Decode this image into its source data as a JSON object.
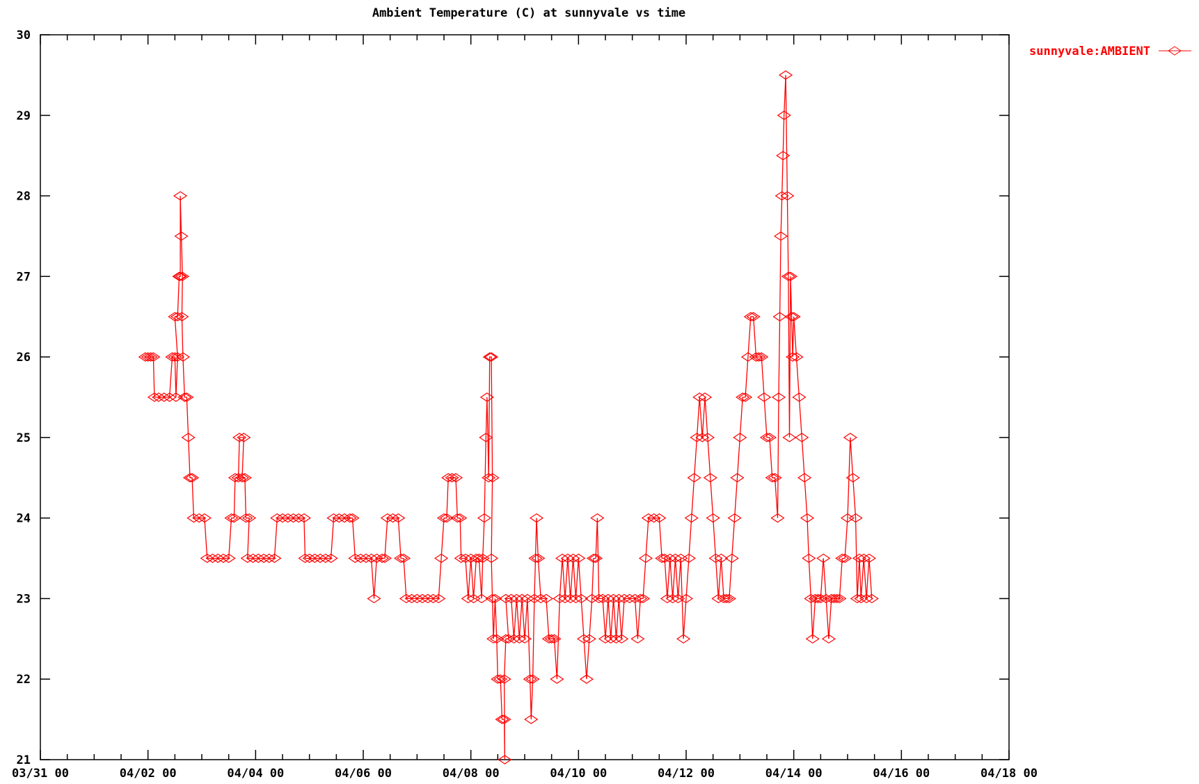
{
  "chart_data": {
    "type": "line",
    "title": "Ambient Temperature (C) at sunnyvale vs time",
    "xlabel": "",
    "ylabel": "",
    "xlim": [
      0,
      18
    ],
    "ylim": [
      21,
      30
    ],
    "x_unit": "days from 03/31 00",
    "x_tick_labels": [
      "03/31 00",
      "04/02 00",
      "04/04 00",
      "04/06 00",
      "04/08 00",
      "04/10 00",
      "04/12 00",
      "04/14 00",
      "04/16 00",
      "04/18 00"
    ],
    "y_tick_labels": [
      "21",
      "22",
      "23",
      "24",
      "25",
      "26",
      "27",
      "28",
      "29",
      "30"
    ],
    "grid": false,
    "legend_position": "top-right",
    "colors": {
      "series": "#ff0000",
      "axes": "#000000"
    },
    "series": [
      {
        "name": "sunnyvale:AMBIENT",
        "marker": "diamond",
        "points": [
          [
            1.95,
            26.0
          ],
          [
            2.0,
            26.0
          ],
          [
            2.05,
            26.0
          ],
          [
            2.1,
            26.0
          ],
          [
            2.12,
            25.5
          ],
          [
            2.2,
            25.5
          ],
          [
            2.3,
            25.5
          ],
          [
            2.4,
            25.5
          ],
          [
            2.45,
            26.0
          ],
          [
            2.5,
            26.0
          ],
          [
            2.52,
            25.5
          ],
          [
            2.55,
            26.0
          ],
          [
            2.5,
            26.5
          ],
          [
            2.55,
            26.5
          ],
          [
            2.58,
            27.0
          ],
          [
            2.6,
            27.0
          ],
          [
            2.6,
            28.0
          ],
          [
            2.62,
            27.5
          ],
          [
            2.64,
            27.0
          ],
          [
            2.63,
            26.5
          ],
          [
            2.65,
            26.0
          ],
          [
            2.68,
            25.5
          ],
          [
            2.72,
            25.5
          ],
          [
            2.75,
            25.0
          ],
          [
            2.78,
            24.5
          ],
          [
            2.82,
            24.5
          ],
          [
            2.85,
            24.0
          ],
          [
            2.95,
            24.0
          ],
          [
            3.05,
            24.0
          ],
          [
            3.1,
            23.5
          ],
          [
            3.2,
            23.5
          ],
          [
            3.3,
            23.5
          ],
          [
            3.4,
            23.5
          ],
          [
            3.5,
            23.5
          ],
          [
            3.55,
            24.0
          ],
          [
            3.6,
            24.0
          ],
          [
            3.62,
            24.5
          ],
          [
            3.68,
            24.5
          ],
          [
            3.7,
            25.0
          ],
          [
            3.78,
            25.0
          ],
          [
            3.75,
            24.5
          ],
          [
            3.8,
            24.5
          ],
          [
            3.82,
            24.0
          ],
          [
            3.88,
            24.0
          ],
          [
            3.85,
            23.5
          ],
          [
            3.95,
            23.5
          ],
          [
            4.05,
            23.5
          ],
          [
            4.15,
            23.5
          ],
          [
            4.25,
            23.5
          ],
          [
            4.35,
            23.5
          ],
          [
            4.4,
            24.0
          ],
          [
            4.5,
            24.0
          ],
          [
            4.6,
            24.0
          ],
          [
            4.7,
            24.0
          ],
          [
            4.8,
            24.0
          ],
          [
            4.9,
            24.0
          ],
          [
            4.92,
            23.5
          ],
          [
            5.0,
            23.5
          ],
          [
            5.1,
            23.5
          ],
          [
            5.2,
            23.5
          ],
          [
            5.3,
            23.5
          ],
          [
            5.4,
            23.5
          ],
          [
            5.45,
            24.0
          ],
          [
            5.55,
            24.0
          ],
          [
            5.65,
            24.0
          ],
          [
            5.75,
            24.0
          ],
          [
            5.8,
            24.0
          ],
          [
            5.85,
            23.5
          ],
          [
            5.95,
            23.5
          ],
          [
            6.05,
            23.5
          ],
          [
            6.15,
            23.5
          ],
          [
            6.2,
            23.0
          ],
          [
            6.25,
            23.5
          ],
          [
            6.35,
            23.5
          ],
          [
            6.4,
            23.5
          ],
          [
            6.45,
            24.0
          ],
          [
            6.55,
            24.0
          ],
          [
            6.65,
            24.0
          ],
          [
            6.7,
            23.5
          ],
          [
            6.75,
            23.5
          ],
          [
            6.8,
            23.0
          ],
          [
            6.9,
            23.0
          ],
          [
            7.0,
            23.0
          ],
          [
            7.1,
            23.0
          ],
          [
            7.2,
            23.0
          ],
          [
            7.3,
            23.0
          ],
          [
            7.4,
            23.0
          ],
          [
            7.45,
            23.5
          ],
          [
            7.5,
            24.0
          ],
          [
            7.55,
            24.0
          ],
          [
            7.58,
            24.5
          ],
          [
            7.65,
            24.5
          ],
          [
            7.72,
            24.5
          ],
          [
            7.75,
            24.0
          ],
          [
            7.8,
            24.0
          ],
          [
            7.82,
            23.5
          ],
          [
            7.9,
            23.5
          ],
          [
            7.95,
            23.0
          ],
          [
            8.0,
            23.5
          ],
          [
            8.05,
            23.0
          ],
          [
            8.1,
            23.5
          ],
          [
            8.15,
            23.5
          ],
          [
            8.2,
            23.0
          ],
          [
            8.22,
            23.5
          ],
          [
            8.25,
            24.0
          ],
          [
            8.28,
            25.0
          ],
          [
            8.3,
            25.5
          ],
          [
            8.33,
            24.5
          ],
          [
            8.35,
            26.0
          ],
          [
            8.38,
            26.0
          ],
          [
            8.4,
            24.5
          ],
          [
            8.38,
            23.5
          ],
          [
            8.4,
            23.0
          ],
          [
            8.42,
            22.5
          ],
          [
            8.45,
            23.0
          ],
          [
            8.48,
            22.5
          ],
          [
            8.5,
            22.0
          ],
          [
            8.55,
            22.0
          ],
          [
            8.58,
            21.5
          ],
          [
            8.62,
            21.5
          ],
          [
            8.63,
            21.0
          ],
          [
            8.62,
            22.0
          ],
          [
            8.65,
            22.5
          ],
          [
            8.7,
            22.5
          ],
          [
            8.65,
            23.0
          ],
          [
            8.75,
            23.0
          ],
          [
            8.8,
            22.5
          ],
          [
            8.85,
            23.0
          ],
          [
            8.9,
            22.5
          ],
          [
            8.95,
            23.0
          ],
          [
            9.0,
            22.5
          ],
          [
            9.05,
            23.0
          ],
          [
            9.1,
            22.0
          ],
          [
            9.12,
            21.5
          ],
          [
            9.15,
            22.0
          ],
          [
            9.18,
            23.0
          ],
          [
            9.2,
            23.5
          ],
          [
            9.22,
            24.0
          ],
          [
            9.25,
            23.5
          ],
          [
            9.3,
            23.0
          ],
          [
            9.4,
            23.0
          ],
          [
            9.45,
            22.5
          ],
          [
            9.5,
            22.5
          ],
          [
            9.55,
            22.5
          ],
          [
            9.6,
            22.0
          ],
          [
            9.65,
            23.0
          ],
          [
            9.7,
            23.5
          ],
          [
            9.75,
            23.0
          ],
          [
            9.8,
            23.5
          ],
          [
            9.85,
            23.0
          ],
          [
            9.9,
            23.5
          ],
          [
            9.95,
            23.0
          ],
          [
            10.0,
            23.5
          ],
          [
            10.05,
            23.0
          ],
          [
            10.1,
            22.5
          ],
          [
            10.15,
            22.0
          ],
          [
            10.2,
            22.5
          ],
          [
            10.25,
            23.0
          ],
          [
            10.28,
            23.5
          ],
          [
            10.32,
            23.5
          ],
          [
            10.35,
            24.0
          ],
          [
            10.38,
            23.0
          ],
          [
            10.45,
            23.0
          ],
          [
            10.5,
            22.5
          ],
          [
            10.55,
            23.0
          ],
          [
            10.6,
            22.5
          ],
          [
            10.65,
            23.0
          ],
          [
            10.7,
            22.5
          ],
          [
            10.75,
            23.0
          ],
          [
            10.8,
            22.5
          ],
          [
            10.85,
            23.0
          ],
          [
            10.95,
            23.0
          ],
          [
            11.05,
            23.0
          ],
          [
            11.1,
            22.5
          ],
          [
            11.15,
            23.0
          ],
          [
            11.2,
            23.0
          ],
          [
            11.25,
            23.5
          ],
          [
            11.3,
            24.0
          ],
          [
            11.4,
            24.0
          ],
          [
            11.5,
            24.0
          ],
          [
            11.55,
            23.5
          ],
          [
            11.6,
            23.5
          ],
          [
            11.65,
            23.0
          ],
          [
            11.7,
            23.5
          ],
          [
            11.75,
            23.0
          ],
          [
            11.8,
            23.5
          ],
          [
            11.85,
            23.0
          ],
          [
            11.9,
            23.5
          ],
          [
            11.95,
            22.5
          ],
          [
            12.0,
            23.0
          ],
          [
            12.05,
            23.5
          ],
          [
            12.1,
            24.0
          ],
          [
            12.15,
            24.5
          ],
          [
            12.2,
            25.0
          ],
          [
            12.25,
            25.5
          ],
          [
            12.3,
            25.0
          ],
          [
            12.35,
            25.5
          ],
          [
            12.4,
            25.0
          ],
          [
            12.45,
            24.5
          ],
          [
            12.5,
            24.0
          ],
          [
            12.55,
            23.5
          ],
          [
            12.6,
            23.0
          ],
          [
            12.65,
            23.5
          ],
          [
            12.7,
            23.0
          ],
          [
            12.75,
            23.0
          ],
          [
            12.8,
            23.0
          ],
          [
            12.85,
            23.5
          ],
          [
            12.9,
            24.0
          ],
          [
            12.95,
            24.5
          ],
          [
            13.0,
            25.0
          ],
          [
            13.05,
            25.5
          ],
          [
            13.1,
            25.5
          ],
          [
            13.15,
            26.0
          ],
          [
            13.2,
            26.5
          ],
          [
            13.25,
            26.5
          ],
          [
            13.3,
            26.0
          ],
          [
            13.35,
            26.0
          ],
          [
            13.4,
            26.0
          ],
          [
            13.45,
            25.5
          ],
          [
            13.5,
            25.0
          ],
          [
            13.55,
            25.0
          ],
          [
            13.6,
            24.5
          ],
          [
            13.65,
            24.5
          ],
          [
            13.7,
            24.0
          ],
          [
            13.72,
            25.5
          ],
          [
            13.74,
            26.5
          ],
          [
            13.76,
            27.5
          ],
          [
            13.78,
            28.0
          ],
          [
            13.8,
            28.5
          ],
          [
            13.82,
            29.0
          ],
          [
            13.85,
            29.5
          ],
          [
            13.88,
            28.0
          ],
          [
            13.9,
            27.0
          ],
          [
            13.92,
            25.0
          ],
          [
            13.94,
            27.0
          ],
          [
            13.96,
            26.5
          ],
          [
            13.98,
            26.0
          ],
          [
            14.0,
            26.5
          ],
          [
            14.05,
            26.0
          ],
          [
            14.1,
            25.5
          ],
          [
            14.15,
            25.0
          ],
          [
            14.2,
            24.5
          ],
          [
            14.25,
            24.0
          ],
          [
            14.28,
            23.5
          ],
          [
            14.32,
            23.0
          ],
          [
            14.35,
            22.5
          ],
          [
            14.4,
            23.0
          ],
          [
            14.45,
            23.0
          ],
          [
            14.5,
            23.0
          ],
          [
            14.55,
            23.5
          ],
          [
            14.6,
            23.0
          ],
          [
            14.65,
            22.5
          ],
          [
            14.7,
            23.0
          ],
          [
            14.75,
            23.0
          ],
          [
            14.8,
            23.0
          ],
          [
            14.85,
            23.0
          ],
          [
            14.9,
            23.5
          ],
          [
            14.95,
            23.5
          ],
          [
            15.0,
            24.0
          ],
          [
            15.05,
            25.0
          ],
          [
            15.1,
            24.5
          ],
          [
            15.15,
            24.0
          ],
          [
            15.18,
            23.0
          ],
          [
            15.22,
            23.5
          ],
          [
            15.25,
            23.0
          ],
          [
            15.3,
            23.5
          ],
          [
            15.35,
            23.0
          ],
          [
            15.4,
            23.5
          ],
          [
            15.45,
            23.0
          ]
        ]
      }
    ]
  }
}
